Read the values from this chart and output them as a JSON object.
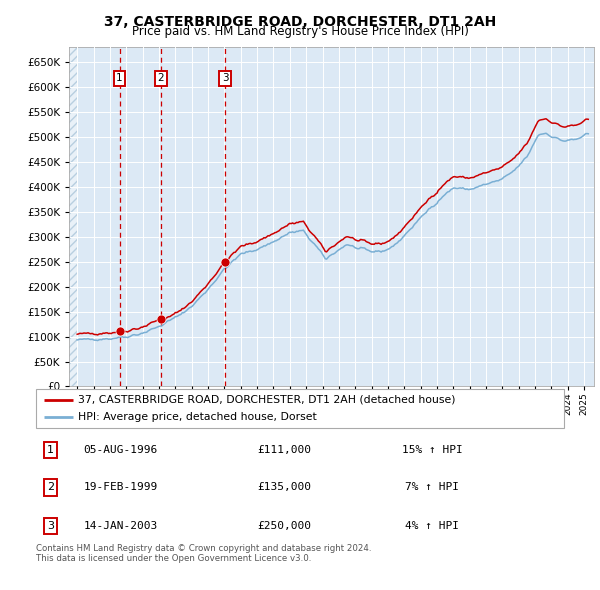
{
  "title": "37, CASTERBRIDGE ROAD, DORCHESTER, DT1 2AH",
  "subtitle": "Price paid vs. HM Land Registry's House Price Index (HPI)",
  "legend_line1": "37, CASTERBRIDGE ROAD, DORCHESTER, DT1 2AH (detached house)",
  "legend_line2": "HPI: Average price, detached house, Dorset",
  "sale_points": [
    {
      "date_num": 1996.59,
      "price": 111000,
      "label": "1"
    },
    {
      "date_num": 1999.12,
      "price": 135000,
      "label": "2"
    },
    {
      "date_num": 2003.04,
      "price": 250000,
      "label": "3"
    }
  ],
  "vline_dates": [
    1996.59,
    1999.12,
    2003.04
  ],
  "table_rows": [
    {
      "num": "1",
      "date": "05-AUG-1996",
      "price": "£111,000",
      "hpi": "15% ↑ HPI"
    },
    {
      "num": "2",
      "date": "19-FEB-1999",
      "price": "£135,000",
      "hpi": "7% ↑ HPI"
    },
    {
      "num": "3",
      "date": "14-JAN-2003",
      "price": "£250,000",
      "hpi": "4% ↑ HPI"
    }
  ],
  "footer": "Contains HM Land Registry data © Crown copyright and database right 2024.\nThis data is licensed under the Open Government Licence v3.0.",
  "ylim": [
    0,
    680000
  ],
  "xlim_start": 1993.5,
  "xlim_end": 2025.6,
  "bg_color": "#dce9f5",
  "red_color": "#cc0000",
  "blue_color": "#7aafd4",
  "vline_color": "#cc0000",
  "hatch_color": "#b8cfe0"
}
